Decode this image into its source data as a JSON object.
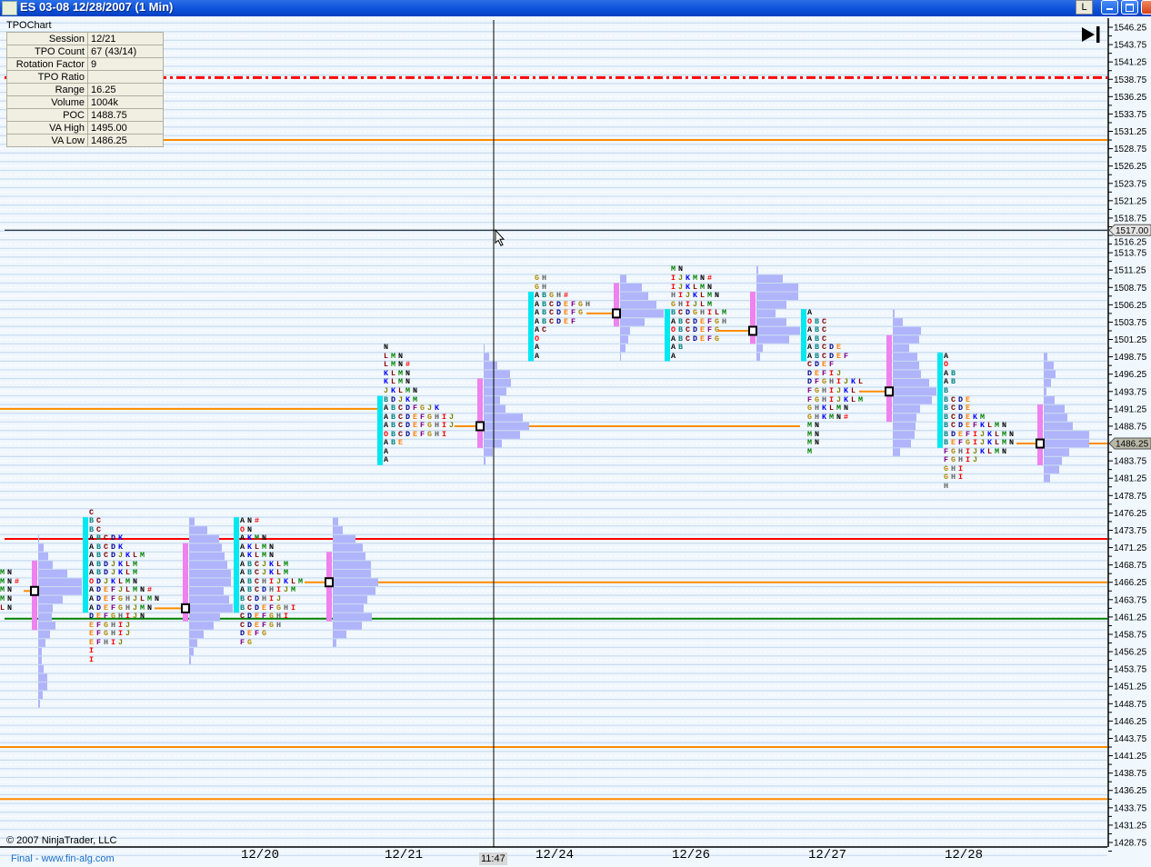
{
  "window": {
    "title": "ES 03-08  12/28/2007 (1 Min)",
    "buttons": {
      "l": "L",
      "minimize": "minimize-icon",
      "restore": "restore-icon",
      "close": "close-icon"
    }
  },
  "info_panel": {
    "title": "TPOChart",
    "rows": [
      {
        "label": "Session",
        "value": "12/21"
      },
      {
        "label": "TPO Count",
        "value": "67 (43/14)"
      },
      {
        "label": "Rotation Factor",
        "value": "9"
      },
      {
        "label": "TPO Ratio",
        "value": ""
      },
      {
        "label": "Range",
        "value": "16.25"
      },
      {
        "label": "Volume",
        "value": "1004k"
      },
      {
        "label": "POC",
        "value": "1488.75"
      },
      {
        "label": "VA High",
        "value": "1495.00"
      },
      {
        "label": "VA Low",
        "value": "1486.25"
      }
    ]
  },
  "axis": {
    "max": 1546.25,
    "min": 1428.75,
    "step": 2.5,
    "tpo_size": 1.25,
    "ticks": [
      "1546.25",
      "1543.75",
      "1541.25",
      "1538.75",
      "1536.25",
      "1533.75",
      "1531.25",
      "1528.75",
      "1526.25",
      "1523.75",
      "1521.25",
      "1518.75",
      "1516.25",
      "1513.75",
      "1511.25",
      "1508.75",
      "1506.25",
      "1503.75",
      "1501.25",
      "1498.75",
      "1496.25",
      "1493.75",
      "1491.25",
      "1488.75",
      "1486.25",
      "1483.75",
      "1481.25",
      "1478.75",
      "1476.25",
      "1473.75",
      "1471.25",
      "1468.75",
      "1466.25",
      "1463.75",
      "1461.25",
      "1458.75",
      "1456.25",
      "1453.75",
      "1451.25",
      "1448.75",
      "1446.25",
      "1443.75",
      "1441.25",
      "1438.75",
      "1436.25",
      "1433.75",
      "1431.25",
      "1428.75"
    ],
    "last_price": 1486.25,
    "last_price_label": "1486.25",
    "crosshair_price": 1517.0,
    "crosshair_price_label": "1517.00",
    "crosshair_time": "11:47"
  },
  "dates": [
    "12/20",
    "12/21",
    "12/24",
    "12/26",
    "12/27",
    "12/28"
  ],
  "footer": {
    "copyright": "© 2007 NinjaTrader, LLC",
    "brand": "Final - www.fin-alg.com"
  },
  "colors": {
    "ib": "#00e8f0",
    "value_area": "#ee82ee",
    "volume": "#b0b4fa",
    "poc_line": "#ff8c00",
    "grid": "#c8dcf0",
    "background": "#f0f7fd"
  },
  "letter_colors": {
    "A": "#000000",
    "B": "#008080",
    "C": "#800000",
    "D": "#000090",
    "E": "#ff7f00",
    "F": "#800080",
    "G": "#b08800",
    "H": "#606060",
    "I": "#ff0000",
    "J": "#808000",
    "K": "#0000ff",
    "L": "#900000",
    "M": "#008000",
    "N": "#000000",
    "O": "#ff0000",
    "#": "#ff0000"
  },
  "profiles": [
    {
      "top": 1467.5,
      "poc": 1465.0,
      "rows": [
        "MN",
        "MN#",
        "MN",
        "MN",
        "LN"
      ]
    },
    {
      "top": 1476.25,
      "poc": 1462.5,
      "ib": [
        1475.0,
        1462.5
      ],
      "rows": [
        "C",
        "BC",
        "BC",
        "ABCDK",
        "ABCDK",
        "ABCDJKLM",
        "ABDJKLM",
        "ABDJKLM",
        "ODJKLMN",
        "ADEFJLMN#",
        "ADEFGHJLMN",
        "ADEFGHJMN",
        "DEFGHIJN",
        "EFGHIJ",
        "EFGHIJ",
        "EFHIJ",
        "I",
        "I"
      ]
    },
    {
      "top": 1475.0,
      "poc": 1466.25,
      "ib": [
        1475.0,
        1462.5
      ],
      "rows": [
        "AN#",
        "ON",
        "AKMN",
        "AKLMN",
        "AKLMN",
        "ABCJKLM",
        "ABCJKLM",
        "ABCHIJKLM",
        "ABCDHIJM",
        "BCDHIJ",
        "BCDEFGHI",
        "CDEFGHI",
        "CDEFGH",
        "DEFG",
        "FG"
      ]
    },
    {
      "top": 1500.0,
      "poc": 1488.75,
      "ib": [
        1492.5,
        1483.75
      ],
      "rows": [
        "N",
        "LMN",
        "LMN#",
        "KLMN",
        "KLMN",
        "JKLMN",
        "BDJKM",
        "ABCDFGJK",
        "ABCDEFGHIJ",
        "ABCDEFGHIJ",
        "OBCDEFGHI",
        "ABE",
        "A",
        "A"
      ]
    },
    {
      "top": 1510.0,
      "poc": 1505.0,
      "ib": [
        1507.5,
        1498.75
      ],
      "rows": [
        "GH",
        "GH",
        "ABGH#",
        "ABCDEFGH",
        "ABCDEFG",
        "ABCDEF",
        "AC",
        "O",
        "A",
        "A"
      ]
    },
    {
      "top": 1511.25,
      "poc": 1502.5,
      "ib": [
        1505.0,
        1498.75
      ],
      "rows": [
        "MN",
        "IJKMN#",
        "IJKLMN",
        "HIJKLMN",
        "GHIJLM",
        "BCDGHILM",
        "ABCDEFGH",
        "OBCDEFG",
        "ABCDEFG",
        "AB",
        "A"
      ]
    },
    {
      "top": 1505.0,
      "poc": 1493.75,
      "ib": [
        1505.0,
        1498.75
      ],
      "rows": [
        "A",
        "OBC",
        "ABC",
        "ABC",
        "ABCDE",
        "ABCDEF",
        "CDEF",
        "DEFIJ",
        "DFGHIJKL",
        "FGHIJKL",
        "FGHIJKLM",
        "GHKLMN",
        "GHKMN#",
        "MN",
        "MN",
        "MN",
        "M"
      ]
    },
    {
      "top": 1498.75,
      "poc": 1486.25,
      "ib": [
        1498.75,
        1486.25
      ],
      "rows": [
        "A",
        "O",
        "AB",
        "AB",
        "B",
        "BCDE",
        "BCDE",
        "BCDEKM",
        "BCDEFKLMN",
        "BDEFIJKLMN",
        "BEFGIJKLMN",
        "FGHIJKLMN",
        "FGHIJ",
        "GHI",
        "GHI",
        "H"
      ]
    }
  ],
  "volume_profiles": [
    {
      "top": 1472.5,
      "poc": 1465.0,
      "va": [
        1468.75,
        1460.0
      ],
      "volumes": [
        1,
        6,
        11,
        16,
        32,
        48,
        48,
        27,
        16,
        15,
        19,
        13,
        8,
        4,
        4,
        6,
        10,
        10,
        5,
        2
      ]
    },
    {
      "top": 1475.0,
      "poc": 1462.5,
      "va": [
        1471.25,
        1461.25
      ],
      "volumes": [
        6,
        20,
        33,
        36,
        39,
        42,
        46,
        46,
        38,
        44,
        48,
        34,
        27,
        16,
        9,
        5,
        2
      ]
    },
    {
      "top": 1475.0,
      "poc": 1466.25,
      "va": [
        1470.0,
        1461.25
      ],
      "volumes": [
        6,
        11,
        25,
        33,
        36,
        42,
        42,
        50,
        47,
        38,
        34,
        43,
        32,
        15,
        4
      ]
    },
    {
      "top": 1500.0,
      "poc": 1488.75,
      "va": [
        1495.0,
        1486.25
      ],
      "volumes": [
        1,
        6,
        15,
        29,
        30,
        25,
        18,
        24,
        43,
        50,
        40,
        20,
        10,
        2
      ]
    },
    {
      "top": 1510.0,
      "poc": 1505.0,
      "va": [
        1508.75,
        1503.75
      ],
      "volumes": [
        7,
        24,
        31,
        40,
        48,
        27,
        11,
        9,
        6,
        1
      ]
    },
    {
      "top": 1511.25,
      "poc": 1502.5,
      "va": [
        1507.5,
        1501.25
      ],
      "volumes": [
        2,
        29,
        46,
        46,
        33,
        21,
        33,
        48,
        36,
        7,
        4
      ]
    },
    {
      "top": 1505.0,
      "poc": 1493.75,
      "va": [
        1501.25,
        1490.0
      ],
      "volumes": [
        2,
        11,
        31,
        29,
        18,
        27,
        29,
        31,
        40,
        48,
        43,
        30,
        26,
        25,
        24,
        20,
        8
      ]
    },
    {
      "top": 1498.75,
      "poc": 1486.25,
      "va": [
        1491.25,
        1483.75
      ],
      "volumes": [
        4,
        11,
        13,
        8,
        3,
        12,
        23,
        26,
        32,
        50,
        50,
        28,
        20,
        17,
        7
      ]
    }
  ],
  "levels": [
    {
      "price": 1539.0,
      "color": "#ff0000",
      "style": "dash-dot"
    },
    {
      "price": 1530.0,
      "color": "#ff8c00",
      "style": "solid"
    },
    {
      "price": 1491.25,
      "color": "#ff8c00",
      "style": "solid"
    },
    {
      "price": 1488.75,
      "color": "#ff8c00",
      "style": "solid"
    },
    {
      "price": 1505.0,
      "color": "#ff8c00",
      "style": "solid"
    },
    {
      "price": 1502.5,
      "color": "#ff8c00",
      "style": "solid"
    },
    {
      "price": 1493.75,
      "color": "#ff8c00",
      "style": "solid"
    },
    {
      "price": 1486.25,
      "color": "#ff8c00",
      "style": "solid"
    },
    {
      "price": 1465.0,
      "color": "#ff8c00",
      "style": "solid"
    },
    {
      "price": 1462.5,
      "color": "#ff8c00",
      "style": "solid"
    },
    {
      "price": 1466.25,
      "color": "#ff8c00",
      "style": "solid"
    },
    {
      "price": 1472.5,
      "color": "#ff0000",
      "style": "solid"
    },
    {
      "price": 1461.0,
      "color": "#008000",
      "style": "solid"
    },
    {
      "price": 1442.5,
      "color": "#ff8c00",
      "style": "solid"
    },
    {
      "price": 1435.0,
      "color": "#ff8c00",
      "style": "solid"
    }
  ]
}
